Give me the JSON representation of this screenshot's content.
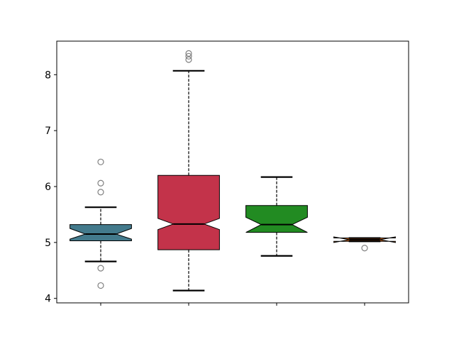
{
  "chart_data": {
    "type": "boxplot",
    "notched": true,
    "title": "",
    "xlabel": "",
    "ylabel": "",
    "xlim": [
      0.5,
      4.5
    ],
    "ylim": [
      3.92,
      8.6
    ],
    "yticks": [
      4,
      5,
      6,
      7,
      8
    ],
    "xticks": [
      1,
      2,
      3,
      4
    ],
    "xtick_labels": [
      "",
      "",
      "",
      ""
    ],
    "grid": false,
    "boxes": [
      {
        "position": 1,
        "color": "#437a8c",
        "whisker_low": 4.66,
        "q1": 5.03,
        "notch_low": 5.06,
        "median": 5.15,
        "notch_high": 5.25,
        "q3": 5.32,
        "whisker_high": 5.63,
        "outliers": [
          6.44,
          6.06,
          5.9,
          4.54,
          4.23
        ]
      },
      {
        "position": 2,
        "color": "#c3334a",
        "whisker_low": 4.14,
        "q1": 4.87,
        "notch_low": 5.23,
        "median": 5.33,
        "notch_high": 5.43,
        "q3": 6.2,
        "whisker_high": 8.07,
        "outliers": [
          8.38,
          8.33,
          8.27
        ]
      },
      {
        "position": 3,
        "color": "#228b22",
        "whisker_low": 4.76,
        "q1": 5.18,
        "notch_low": 5.18,
        "median": 5.32,
        "notch_high": 5.45,
        "q3": 5.66,
        "whisker_high": 6.17,
        "outliers": []
      },
      {
        "position": 4,
        "color": "#d2691e",
        "whisker_low": 5.02,
        "q1": 5.02,
        "notch_low": 5.0,
        "median": 5.05,
        "notch_high": 5.1,
        "q3": 5.08,
        "whisker_high": 5.08,
        "outliers": [
          4.9
        ]
      }
    ],
    "outlier_color": "#808080"
  }
}
